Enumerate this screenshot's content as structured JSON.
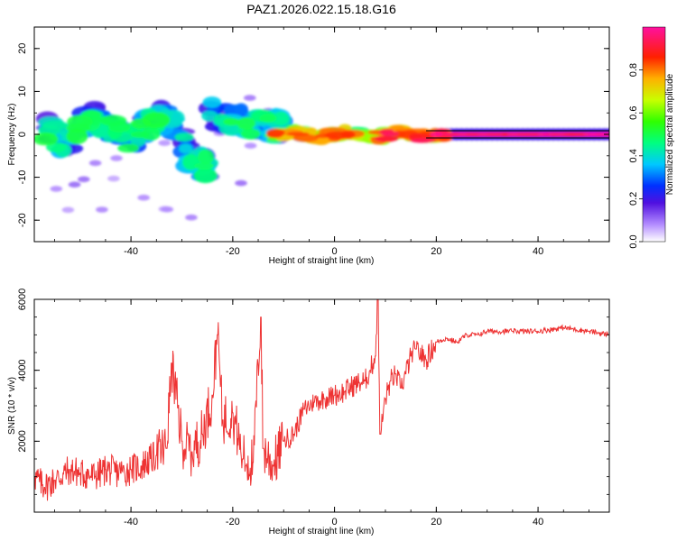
{
  "chart_data": [
    {
      "type": "heatmap",
      "title": "PAZ1.2026.022.15.18.G16",
      "xlabel": "Height of straight line (km)",
      "ylabel": "Frequency (Hz)",
      "xlim": [
        -59,
        54
      ],
      "ylim": [
        -25,
        25
      ],
      "x_ticks": [
        "-40",
        "-20",
        "0",
        "20",
        "40"
      ],
      "y_ticks": [
        "20",
        "10",
        "0",
        "-10",
        "-20"
      ],
      "colorbar": {
        "label": "Normalized spectral amplitude",
        "range": [
          0.0,
          1.0
        ],
        "ticks": [
          "0.0",
          "0.2",
          "0.4",
          "0.6",
          "0.8"
        ]
      },
      "features": [
        {
          "x": [
            -57,
            -10
          ],
          "freq": [
            -6,
            8
          ],
          "amplitude": "scattered 0.1-0.5"
        },
        {
          "x": [
            -10,
            20
          ],
          "freq": [
            -1,
            2
          ],
          "amplitude": "0.4-0.85"
        },
        {
          "x": [
            20,
            54
          ],
          "freq": [
            -0.5,
            0.5
          ],
          "amplitude": "0.85-1.0"
        }
      ]
    },
    {
      "type": "line",
      "xlabel": "Height of straight line (km)",
      "ylabel": "SNR (10 * v/v)",
      "xlim": [
        -59,
        54
      ],
      "ylim": [
        0,
        6000
      ],
      "x_ticks": [
        "-40",
        "-20",
        "0",
        "20",
        "40"
      ],
      "y_ticks": [
        "2000",
        "4000",
        "6000"
      ],
      "line_color": "#ee3333",
      "series": [
        {
          "name": "SNR",
          "x": [
            -59,
            -57,
            -55,
            -52,
            -50,
            -47,
            -45,
            -42,
            -40,
            -38,
            -35,
            -33,
            -32,
            -30,
            -28,
            -26,
            -24,
            -23,
            -22,
            -20,
            -18,
            -16,
            -14.5,
            -14,
            -12,
            -10,
            -8,
            -6,
            -4,
            -2,
            0,
            2,
            4,
            6,
            7,
            8,
            8.5,
            9,
            10,
            11,
            12,
            13,
            14,
            15,
            16,
            18,
            20,
            22,
            24,
            26,
            28,
            30,
            35,
            40,
            45,
            50,
            54
          ],
          "y": [
            1000,
            700,
            900,
            1200,
            1100,
            1000,
            1200,
            1100,
            1200,
            1300,
            1600,
            1800,
            4200,
            2000,
            1700,
            2200,
            3300,
            5000,
            2600,
            2800,
            1500,
            1400,
            5500,
            1800,
            1300,
            2000,
            2200,
            2900,
            3100,
            3200,
            3300,
            3400,
            3600,
            3700,
            4000,
            4400,
            6000,
            2200,
            3200,
            3700,
            3900,
            3500,
            3900,
            4400,
            4600,
            4300,
            4800,
            4900,
            4800,
            5000,
            5000,
            5100,
            5100,
            5100,
            5200,
            5100,
            5000
          ]
        }
      ]
    }
  ]
}
